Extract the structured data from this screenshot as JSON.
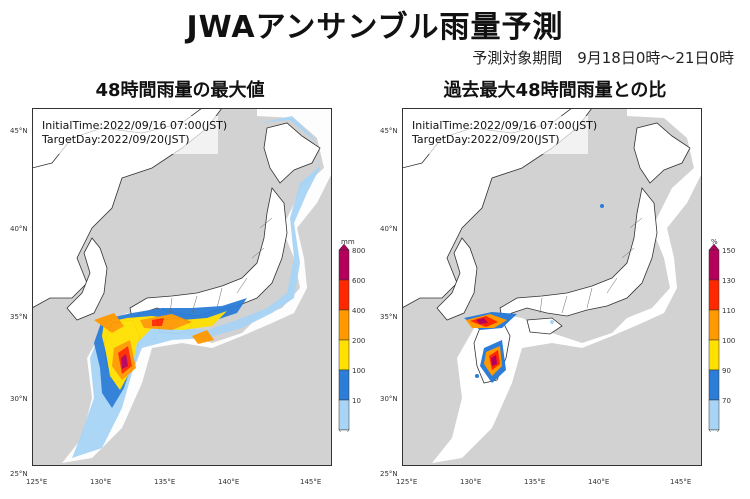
{
  "header": {
    "title": "JWAアンサンブル雨量予測",
    "period": "予測対象期間　9月18日0時～21日0時"
  },
  "panels": [
    {
      "subtitle": "48時間雨量の最大値",
      "initial_time": "InitialTime:2022/09/16 07:00(JST)",
      "target_day": "TargetDay:2022/09/20(JST)",
      "legend": {
        "unit": "mm",
        "labels": [
          "800",
          "600",
          "400",
          "200",
          "100",
          "10"
        ],
        "colors": [
          "#b4005a",
          "#ff2800",
          "#ff9900",
          "#ffe000",
          "#2b7dd8",
          "#a8d4f5"
        ]
      }
    },
    {
      "subtitle": "過去最大48時間雨量との比",
      "initial_time": "InitialTime:2022/09/16 07:00(JST)",
      "target_day": "TargetDay:2022/09/20(JST)",
      "legend": {
        "unit": "%",
        "labels": [
          "150",
          "130",
          "110",
          "100",
          "90",
          "70"
        ],
        "colors": [
          "#b4005a",
          "#ff2800",
          "#ff9900",
          "#ffe000",
          "#2b7dd8",
          "#a8d4f5"
        ]
      }
    }
  ],
  "axes": {
    "lon_labels": [
      "125°E",
      "130°E",
      "135°E",
      "140°E",
      "145°E"
    ],
    "lat_labels": [
      "45°N",
      "40°N",
      "35°N",
      "30°N",
      "25°N"
    ]
  }
}
